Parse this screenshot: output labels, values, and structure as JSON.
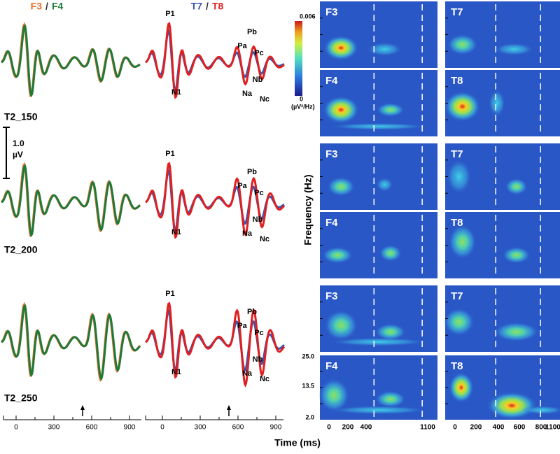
{
  "left_header": {
    "first": "F3",
    "sep": "/",
    "second": "F4"
  },
  "mid_header": {
    "first": "T7",
    "sep": "/",
    "second": "T8"
  },
  "scale_bar": {
    "value": "1.0",
    "unit": "µV"
  },
  "conditions": [
    "T2_150",
    "T2_200",
    "T2_250"
  ],
  "peaks": [
    [
      "P1",
      "N1",
      "Pa",
      "Pb",
      "Pc",
      "Nb",
      "Na",
      "Nc"
    ],
    [
      "P1",
      "N1",
      "Pa",
      "Pb",
      "Pc",
      "Nb",
      "Na",
      "Nc"
    ],
    [
      "P1",
      "N1",
      "Pa",
      "Pb",
      "Pc",
      "Nb",
      "Na",
      "Nc"
    ]
  ],
  "erp_time_ticks": [
    "0",
    "300",
    "600",
    "900"
  ],
  "colorbar": {
    "max": "0.006",
    "min": "0",
    "unit": "(µV²/Hz)"
  },
  "tf_panels": [
    [
      "F3",
      "T7"
    ],
    [
      "F4",
      "T8"
    ],
    [
      "F3",
      "T7"
    ],
    [
      "F4",
      "T8"
    ],
    [
      "F3",
      "T7"
    ],
    [
      "F4",
      "T8"
    ]
  ],
  "freq_label": "Frequency (Hz)",
  "freq_ticks": [
    "25.0",
    "13.5",
    "2.0"
  ],
  "tf_time_ticks_left": [
    "0",
    "200",
    "400",
    "1100"
  ],
  "tf_time_ticks_right": [
    "0",
    "200",
    "400",
    "600",
    "800",
    "1100"
  ],
  "time_label": "Time (ms)"
}
